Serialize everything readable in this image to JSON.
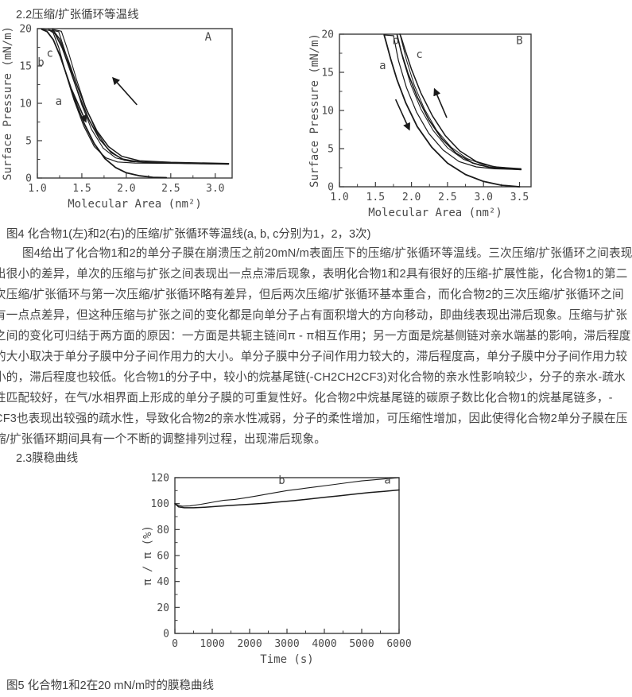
{
  "page": {
    "section1_heading": "2.2压缩/扩张循环等温线",
    "fig4_caption": "图4 化合物1(左)和2(右)的压缩/扩张循环等温线(a, b, c分别为1，2，3次)",
    "paragraph_lines": [
      "图4给出了化合物1和2的单分子膜在崩溃压之前20mN/m表面压下的压缩/扩张循环等温线。三次压缩/扩张循环之间表现",
      "出很小的差异，单次的压缩与扩张之间表现出一点点滞后现象，表明化合物1和2具有很好的压缩-扩展性能，化合物1的第二",
      "次压缩/扩张循环与第一次压缩/扩张循环略有差异，但后两次压缩/扩张循环基本重合，而化合物2的三次压缩/扩张循环之间",
      "有一点点差异，但这种压缩与扩张之间的变化都是向单分子占有面积增大的方向移动，即曲线表现出滞后现象。压缩与扩张",
      "之间的变化可归结于两方面的原因：一方面是共轭主链间π - π相互作用；另一方面是烷基侧链对亲水端基的影响，滞后程度",
      "的大小取决于单分子膜中分子间作用力的大小。单分子膜中分子间作用力较大的，滞后程度高，单分子膜中分子间作用力较",
      "小的，滞后程度也较低。化合物1的分子中，较小的烷基尾链(-CH2CH2CF3)对化合物的亲水性影响较少，分子的亲水-疏水",
      "性匹配较好，在气/水相界面上形成的单分子膜的可重复性好。化合物2中烷基尾链的碳原子数比化合物1的烷基尾链多，-",
      "CF3也表现出较强的疏水性，导致化合物2的亲水性减弱，分子的柔性增加，可压缩性增加，因此使得化合物2单分子膜在压",
      "缩/扩张循环期间具有一个不断的调整排列过程，出现滞后现象。"
    ],
    "section2_heading": "2.3膜稳曲线",
    "fig5_caption": "图5 化合物1和2在20 mN/m时的膜稳曲线"
  },
  "colors": {
    "curve": "#1a1a1a",
    "axis": "#3c3c3c",
    "tick_text": "#4a4a4a"
  },
  "chart_data": [
    {
      "id": "fig4A",
      "type": "line",
      "figure_letter": "A",
      "xlabel": "Molecular Area (nm²)",
      "ylabel": "Surface Pressure (mN/m)",
      "xlim": [
        1.0,
        3.19
      ],
      "ylim": [
        0,
        20
      ],
      "xticks": [
        1.0,
        1.5,
        2.0,
        2.5,
        3.0
      ],
      "xtick_labels": [
        "1.0",
        "1.5",
        "2.0",
        "2.5",
        "3.0"
      ],
      "yticks": [
        0,
        5,
        10,
        15,
        20
      ],
      "ytick_labels": [
        "0",
        "5",
        "10",
        "15",
        "20"
      ],
      "legend_note": "a,b,c = 1st,2nd,3rd compression/expansion cycle",
      "series": [
        {
          "name": "cycle1-compression-a",
          "w": 1.8,
          "points": [
            [
              2.45,
              0.05
            ],
            [
              2.3,
              0.1
            ],
            [
              2.15,
              0.3
            ],
            [
              2.0,
              0.7
            ],
            [
              1.88,
              1.4
            ],
            [
              1.76,
              2.6
            ],
            [
              1.64,
              4.6
            ],
            [
              1.53,
              7.2
            ],
            [
              1.43,
              10.2
            ],
            [
              1.34,
              13.4
            ],
            [
              1.26,
              16.2
            ],
            [
              1.18,
              18.5
            ],
            [
              1.11,
              19.6
            ],
            [
              1.05,
              19.9
            ]
          ]
        },
        {
          "name": "cycle1-expansion-a",
          "w": 1.2,
          "points": [
            [
              1.05,
              19.9
            ],
            [
              1.17,
              19.7
            ],
            [
              1.24,
              17.5
            ],
            [
              1.32,
              14.0
            ],
            [
              1.41,
              10.5
            ],
            [
              1.52,
              7.0
            ],
            [
              1.64,
              4.2
            ],
            [
              1.77,
              2.7
            ],
            [
              1.9,
              2.15
            ],
            [
              2.1,
              2.0
            ],
            [
              2.6,
              1.95
            ],
            [
              3.15,
              1.85
            ]
          ]
        },
        {
          "name": "cycle2-compression-b",
          "w": 1.6,
          "points": [
            [
              3.15,
              1.9
            ],
            [
              2.6,
              2.0
            ],
            [
              2.2,
              2.1
            ],
            [
              1.98,
              2.4
            ],
            [
              1.83,
              3.4
            ],
            [
              1.7,
              5.2
            ],
            [
              1.58,
              7.8
            ],
            [
              1.47,
              11.0
            ],
            [
              1.37,
              14.4
            ],
            [
              1.28,
              17.4
            ],
            [
              1.2,
              19.3
            ],
            [
              1.13,
              19.85
            ]
          ]
        },
        {
          "name": "cycle2-expansion-b",
          "w": 1.1,
          "points": [
            [
              1.13,
              19.85
            ],
            [
              1.24,
              19.6
            ],
            [
              1.31,
              17.0
            ],
            [
              1.4,
              13.5
            ],
            [
              1.5,
              9.8
            ],
            [
              1.61,
              6.5
            ],
            [
              1.74,
              4.0
            ],
            [
              1.88,
              2.7
            ],
            [
              2.05,
              2.2
            ],
            [
              2.4,
              2.0
            ],
            [
              3.15,
              1.9
            ]
          ]
        },
        {
          "name": "cycle3-compression-c",
          "w": 1.5,
          "points": [
            [
              3.15,
              1.95
            ],
            [
              2.5,
              2.1
            ],
            [
              2.15,
              2.3
            ],
            [
              1.95,
              2.9
            ],
            [
              1.8,
              4.2
            ],
            [
              1.67,
              6.3
            ],
            [
              1.55,
              9.2
            ],
            [
              1.44,
              12.6
            ],
            [
              1.34,
              16.0
            ],
            [
              1.25,
              18.6
            ],
            [
              1.17,
              19.9
            ]
          ]
        },
        {
          "name": "cycle3-expansion-c",
          "w": 1.1,
          "points": [
            [
              1.17,
              19.9
            ],
            [
              1.27,
              19.65
            ],
            [
              1.35,
              16.8
            ],
            [
              1.44,
              13.2
            ],
            [
              1.54,
              9.6
            ],
            [
              1.66,
              6.3
            ],
            [
              1.79,
              3.9
            ],
            [
              1.94,
              2.6
            ],
            [
              2.15,
              2.15
            ],
            [
              2.7,
              1.95
            ],
            [
              3.15,
              1.85
            ]
          ]
        }
      ],
      "curve_labels": [
        {
          "text": "a",
          "x": 1.24,
          "y": 9.8
        },
        {
          "text": "b",
          "x": 1.04,
          "y": 15.0
        },
        {
          "text": "c",
          "x": 1.14,
          "y": 16.2
        },
        {
          "text": "A",
          "x": 2.92,
          "y": 18.4
        }
      ],
      "arrows": [
        {
          "x1": 1.384,
          "y1": 11.9,
          "x2": 1.545,
          "y2": 7.55
        },
        {
          "x1": 2.12,
          "y1": 9.8,
          "x2": 1.85,
          "y2": 13.4
        }
      ]
    },
    {
      "id": "fig4B",
      "type": "line",
      "figure_letter": "B",
      "xlabel": "Molecular Area (nm²)",
      "ylabel": "Surface Pressure (mN/m)",
      "xlim": [
        1.0,
        3.66
      ],
      "ylim": [
        0,
        20
      ],
      "xticks": [
        1.0,
        1.5,
        2.0,
        2.5,
        3.0,
        3.5
      ],
      "xtick_labels": [
        "1.0",
        "1.5",
        "2.0",
        "2.5",
        "3.0",
        "3.5"
      ],
      "yticks": [
        0,
        5,
        10,
        15,
        20
      ],
      "ytick_labels": [
        "0",
        "5",
        "10",
        "15",
        "20"
      ],
      "legend_note": "a,b,c = 1st,2nd,3rd compression/expansion cycle",
      "series": [
        {
          "name": "cycle1-compression-a",
          "w": 1.8,
          "points": [
            [
              3.5,
              0.0
            ],
            [
              3.25,
              0.2
            ],
            [
              3.0,
              0.7
            ],
            [
              2.75,
              1.6
            ],
            [
              2.5,
              3.1
            ],
            [
              2.28,
              5.2
            ],
            [
              2.08,
              7.9
            ],
            [
              1.92,
              11.0
            ],
            [
              1.8,
              14.0
            ],
            [
              1.71,
              16.8
            ],
            [
              1.65,
              18.9
            ],
            [
              1.62,
              19.9
            ]
          ]
        },
        {
          "name": "cycle1-expansion-a",
          "w": 1.2,
          "points": [
            [
              1.62,
              19.9
            ],
            [
              1.75,
              19.8
            ],
            [
              1.82,
              16.5
            ],
            [
              1.93,
              13.0
            ],
            [
              2.07,
              9.8
            ],
            [
              2.24,
              7.0
            ],
            [
              2.44,
              4.8
            ],
            [
              2.66,
              3.3
            ],
            [
              2.9,
              2.6
            ],
            [
              3.15,
              2.35
            ],
            [
              3.52,
              2.25
            ]
          ]
        },
        {
          "name": "cycle2-compression-b",
          "w": 1.6,
          "points": [
            [
              3.52,
              2.25
            ],
            [
              3.1,
              2.5
            ],
            [
              2.85,
              3.1
            ],
            [
              2.62,
              4.4
            ],
            [
              2.42,
              6.3
            ],
            [
              2.24,
              8.8
            ],
            [
              2.08,
              11.8
            ],
            [
              1.95,
              14.9
            ],
            [
              1.86,
              17.6
            ],
            [
              1.8,
              19.9
            ]
          ]
        },
        {
          "name": "cycle2-expansion-b",
          "w": 1.0,
          "points": [
            [
              1.8,
              19.9
            ],
            [
              1.88,
              16.8
            ],
            [
              1.99,
              13.4
            ],
            [
              2.13,
              10.2
            ],
            [
              2.3,
              7.4
            ],
            [
              2.5,
              5.1
            ],
            [
              2.72,
              3.6
            ],
            [
              2.95,
              2.8
            ],
            [
              3.2,
              2.45
            ],
            [
              3.52,
              2.3
            ]
          ]
        },
        {
          "name": "cycle3-compression-c",
          "w": 1.5,
          "points": [
            [
              3.52,
              2.35
            ],
            [
              3.15,
              2.6
            ],
            [
              2.9,
              3.3
            ],
            [
              2.67,
              4.7
            ],
            [
              2.47,
              6.7
            ],
            [
              2.29,
              9.3
            ],
            [
              2.13,
              12.3
            ],
            [
              2.0,
              15.4
            ],
            [
              1.91,
              18.0
            ],
            [
              1.86,
              19.5
            ],
            [
              1.84,
              20.0
            ]
          ]
        },
        {
          "name": "cycle3-expansion-c",
          "w": 1.0,
          "points": [
            [
              1.84,
              20.0
            ],
            [
              1.93,
              16.6
            ],
            [
              2.04,
              13.3
            ],
            [
              2.18,
              10.2
            ],
            [
              2.35,
              7.4
            ],
            [
              2.55,
              5.2
            ],
            [
              2.77,
              3.7
            ],
            [
              3.0,
              2.9
            ],
            [
              3.25,
              2.5
            ],
            [
              3.52,
              2.35
            ]
          ]
        }
      ],
      "curve_labels": [
        {
          "text": "a",
          "x": 1.6,
          "y": 15.4
        },
        {
          "text": "b",
          "x": 1.78,
          "y": 18.7
        },
        {
          "text": "c",
          "x": 2.11,
          "y": 16.9
        },
        {
          "text": "B",
          "x": 3.5,
          "y": 18.7
        }
      ],
      "arrows": [
        {
          "x1": 1.78,
          "y1": 11.45,
          "x2": 1.97,
          "y2": 7.5
        },
        {
          "x1": 2.49,
          "y1": 9.06,
          "x2": 2.32,
          "y2": 12.8
        }
      ]
    },
    {
      "id": "fig5",
      "type": "line",
      "figure_letter": "",
      "xlabel": "Time (s)",
      "ylabel": "π / π (%)",
      "xlim": [
        0,
        6000
      ],
      "ylim": [
        0,
        120
      ],
      "xticks": [
        0,
        1000,
        2000,
        3000,
        4000,
        5000,
        6000
      ],
      "xtick_labels": [
        "0",
        "1000",
        "2000",
        "3000",
        "4000",
        "5000",
        "6000"
      ],
      "yticks": [
        0,
        20,
        40,
        60,
        80,
        100,
        120
      ],
      "ytick_labels": [
        "0",
        "20",
        "40",
        "60",
        "80",
        "100",
        "120"
      ],
      "legend_note": "a = compound 1, b = compound 2 at 20 mN/m",
      "series": [
        {
          "name": "compound2-b",
          "w": 1.1,
          "points": [
            [
              0,
              100
            ],
            [
              100,
              98.5
            ],
            [
              200,
              98
            ],
            [
              400,
              98.2
            ],
            [
              700,
              99.5
            ],
            [
              1000,
              101
            ],
            [
              1300,
              102.5
            ],
            [
              1600,
              103.2
            ],
            [
              1900,
              104.5
            ],
            [
              2200,
              106
            ],
            [
              2600,
              108
            ],
            [
              3000,
              110
            ],
            [
              3400,
              111.5
            ],
            [
              3800,
              113
            ],
            [
              4200,
              114.5
            ],
            [
              4600,
              116
            ],
            [
              5000,
              117.5
            ],
            [
              5400,
              118.5
            ],
            [
              5800,
              119.5
            ],
            [
              6000,
              120
            ]
          ]
        },
        {
          "name": "compound1-a",
          "w": 1.5,
          "points": [
            [
              0,
              100
            ],
            [
              100,
              97.5
            ],
            [
              250,
              96.8
            ],
            [
              500,
              96.8
            ],
            [
              800,
              97.2
            ],
            [
              1200,
              98
            ],
            [
              1600,
              98.8
            ],
            [
              2000,
              99.5
            ],
            [
              2400,
              100.3
            ],
            [
              2800,
              101.3
            ],
            [
              3200,
              102.3
            ],
            [
              3600,
              103.5
            ],
            [
              4000,
              104.8
            ],
            [
              4400,
              106
            ],
            [
              4800,
              107.3
            ],
            [
              5200,
              108.5
            ],
            [
              5600,
              109.5
            ],
            [
              6000,
              110.5
            ]
          ]
        }
      ],
      "curve_labels": [
        {
          "text": "b",
          "x": 2860,
          "y": 115
        },
        {
          "text": "a",
          "x": 5690,
          "y": 115.5
        }
      ],
      "arrows": []
    }
  ]
}
